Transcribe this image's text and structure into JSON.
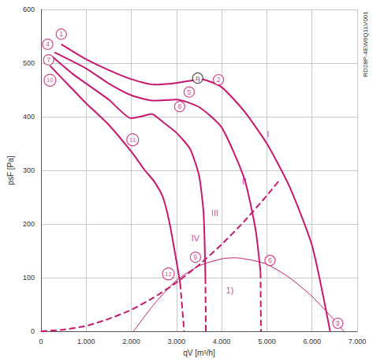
{
  "chart_data": {
    "type": "line",
    "x_label": "qV [m³/h]",
    "y_label": "psF [Pa]",
    "side_text": "RD28P-4EW6Q1LV001",
    "xlim": [
      0,
      7000
    ],
    "ylim": [
      0,
      600
    ],
    "xticks": [
      0,
      {
        "value": 1000,
        "label": "1.000"
      },
      {
        "value": 2000,
        "label": "2.000"
      },
      {
        "value": 3000,
        "label": "3.000"
      },
      {
        "value": 4000,
        "label": "4.000"
      },
      {
        "value": 5000,
        "label": "5.000"
      },
      {
        "value": 6000,
        "label": "6.000"
      },
      {
        "value": 7000,
        "label": "7.000"
      }
    ],
    "yticks": [
      0,
      100,
      200,
      300,
      400,
      500,
      600
    ],
    "grid": true,
    "series": [
      {
        "color": "#c8186e",
        "line_style": "solid",
        "values": [
          [
            450,
            535
          ],
          [
            1000,
            507
          ],
          [
            1500,
            487
          ],
          [
            2000,
            470
          ],
          [
            2500,
            460
          ],
          [
            3000,
            463
          ],
          [
            3550,
            470
          ],
          [
            4000,
            455
          ],
          [
            4500,
            410
          ],
          [
            5000,
            350
          ],
          [
            5500,
            270
          ],
          [
            6000,
            160
          ],
          [
            6400,
            0
          ]
        ]
      },
      {
        "color": "#c8186e",
        "line_style": "solid",
        "values": [
          [
            300,
            520
          ],
          [
            1000,
            490
          ],
          [
            1500,
            462
          ],
          [
            2000,
            440
          ],
          [
            2500,
            430
          ],
          [
            3000,
            432
          ],
          [
            3500,
            418
          ],
          [
            4000,
            380
          ],
          [
            4500,
            285
          ],
          [
            4750,
            190
          ],
          [
            4860,
            110
          ]
        ]
      },
      {
        "color": "#c8186e",
        "line_style": "dashed",
        "values": [
          [
            4860,
            110
          ],
          [
            4870,
            0
          ]
        ]
      },
      {
        "color": "#c8186e",
        "line_style": "solid",
        "values": [
          [
            250,
            512
          ],
          [
            700,
            480
          ],
          [
            1000,
            462
          ],
          [
            1500,
            432
          ],
          [
            2000,
            397
          ],
          [
            2200,
            400
          ],
          [
            2450,
            405
          ],
          [
            2700,
            390
          ],
          [
            3000,
            370
          ],
          [
            3300,
            340
          ],
          [
            3500,
            290
          ],
          [
            3600,
            220
          ],
          [
            3640,
            100
          ]
        ]
      },
      {
        "color": "#c8186e",
        "line_style": "dashed",
        "values": [
          [
            3640,
            100
          ],
          [
            3650,
            0
          ]
        ]
      },
      {
        "color": "#c8186e",
        "line_style": "solid",
        "values": [
          [
            200,
            495
          ],
          [
            600,
            460
          ],
          [
            1000,
            425
          ],
          [
            1500,
            385
          ],
          [
            2000,
            335
          ],
          [
            2300,
            300
          ],
          [
            2500,
            280
          ],
          [
            2700,
            250
          ],
          [
            2850,
            200
          ],
          [
            3000,
            130
          ],
          [
            3080,
            90
          ]
        ]
      },
      {
        "color": "#c8186e",
        "line_style": "dashed",
        "values": [
          [
            3080,
            90
          ],
          [
            3170,
            0
          ]
        ]
      },
      {
        "color": "#c8186e",
        "line_style": "dashed",
        "values": [
          [
            0,
            0
          ],
          [
            500,
            3
          ],
          [
            1000,
            10
          ],
          [
            1500,
            23
          ],
          [
            2000,
            40
          ],
          [
            2500,
            63
          ],
          [
            3000,
            91
          ],
          [
            3500,
            124
          ],
          [
            4000,
            162
          ],
          [
            4500,
            205
          ],
          [
            5000,
            253
          ],
          [
            5300,
            284
          ]
        ]
      },
      {
        "color": "#c8186e",
        "line_style": "thin",
        "values": [
          [
            2050,
            0
          ],
          [
            2500,
            50
          ],
          [
            3000,
            95
          ],
          [
            3500,
            122
          ],
          [
            4000,
            135
          ],
          [
            4300,
            137
          ],
          [
            4700,
            132
          ],
          [
            5000,
            125
          ],
          [
            5500,
            100
          ],
          [
            6000,
            65
          ],
          [
            6500,
            20
          ],
          [
            6700,
            0
          ]
        ]
      }
    ],
    "annotations": [
      {
        "text": "1",
        "x": 450,
        "y": 554,
        "marker": "circle",
        "color": "#c8186e"
      },
      {
        "text": "2",
        "x": 3930,
        "y": 469,
        "marker": "circle",
        "color": "#c8186e"
      },
      {
        "text": "3",
        "x": 6570,
        "y": 15,
        "marker": "circle",
        "color": "#c8186e"
      },
      {
        "text": "4",
        "x": 150,
        "y": 535,
        "marker": "circle",
        "color": "#c8186e"
      },
      {
        "text": "5",
        "x": 3280,
        "y": 446,
        "marker": "circle",
        "color": "#c8186e"
      },
      {
        "text": "6",
        "x": 5070,
        "y": 132,
        "marker": "circle",
        "color": "#c8186e"
      },
      {
        "text": "7",
        "x": 170,
        "y": 506,
        "marker": "circle",
        "color": "#c8186e"
      },
      {
        "text": "8",
        "x": 3070,
        "y": 419,
        "marker": "circle",
        "color": "#c8186e"
      },
      {
        "text": "9",
        "x": 3420,
        "y": 138,
        "marker": "circle",
        "color": "#c8186e"
      },
      {
        "text": "10",
        "x": 200,
        "y": 468,
        "marker": "circle",
        "color": "#c8186e"
      },
      {
        "text": "11",
        "x": 2030,
        "y": 357,
        "marker": "circle",
        "color": "#c8186e"
      },
      {
        "text": "12",
        "x": 2820,
        "y": 107,
        "marker": "circle",
        "color": "#c8186e"
      },
      {
        "text": "η",
        "x": 3470,
        "y": 472,
        "marker": "circle",
        "color": "#222222"
      },
      {
        "text": "I",
        "x": 5030,
        "y": 368,
        "marker": "none",
        "color": "#c8186e"
      },
      {
        "text": "II",
        "x": 4500,
        "y": 280,
        "marker": "none",
        "color": "#c8186e"
      },
      {
        "text": "III",
        "x": 3850,
        "y": 220,
        "marker": "none",
        "color": "#c8186e"
      },
      {
        "text": "IV",
        "x": 3420,
        "y": 173,
        "marker": "none",
        "color": "#c8186e"
      },
      {
        "text": "1)",
        "x": 4180,
        "y": 76,
        "marker": "none",
        "color": "#c8186e"
      }
    ]
  }
}
